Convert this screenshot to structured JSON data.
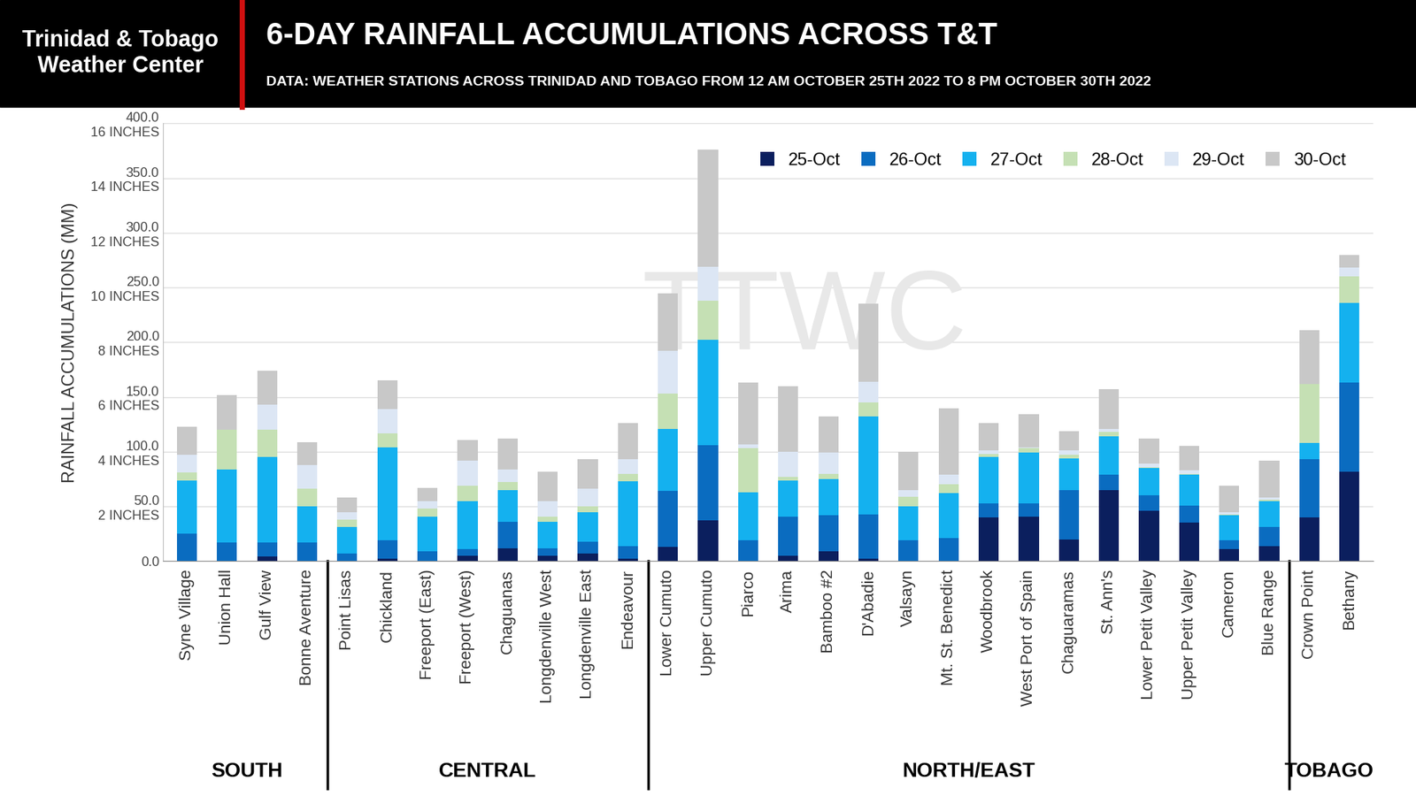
{
  "chart_data": {
    "type": "bar",
    "stacked": true,
    "grid": true,
    "legend": "upper right",
    "header": "Trinidad & Tobago\nWeather Center",
    "title": "6-DAY RAINFALL ACCUMULATIONS ACROSS T&T",
    "subtitle": "DATA: WEATHER STATIONS ACROSS TRINIDAD AND TOBAGO FROM 12 AM OCTOBER 25TH 2022 TO 8 PM OCTOBER 30TH 2022",
    "watermark": "TTWC",
    "y_label": "RAINFALL ACCUMULATIONS (MM)",
    "categories": [
      "Syne Village",
      "Union Hall",
      "Gulf View",
      "Bonne Aventure",
      "Point Lisas",
      "Chickland",
      "Freeport (East)",
      "Freeport (West)",
      "Chaguanas",
      "Longdenville West",
      "Longdenville East",
      "Endeavour",
      "Lower Cumuto",
      "Upper Cumuto",
      "Piarco",
      "Arima",
      "Bamboo #2",
      "D'Abadie",
      "Valsayn",
      "Mt. St. Benedict",
      "Woodbrook",
      "West Port of Spain",
      "Chaguaramas",
      "St. Ann's",
      "Lower Petit Valley",
      "Upper Petit Valley",
      "Cameron",
      "Blue Range",
      "Crown Point",
      "Bethany"
    ],
    "groups": [
      "SOUTH",
      "SOUTH",
      "SOUTH",
      "SOUTH",
      "CENTRAL",
      "CENTRAL",
      "CENTRAL",
      "CENTRAL",
      "CENTRAL",
      "CENTRAL",
      "CENTRAL",
      "CENTRAL",
      "NORTH/EAST",
      "NORTH/EAST",
      "NORTH/EAST",
      "NORTH/EAST",
      "NORTH/EAST",
      "NORTH/EAST",
      "NORTH/EAST",
      "NORTH/EAST",
      "NORTH/EAST",
      "NORTH/EAST",
      "NORTH/EAST",
      "NORTH/EAST",
      "NORTH/EAST",
      "NORTH/EAST",
      "NORTH/EAST",
      "NORTH/EAST",
      "TOBAGO",
      "TOBAGO"
    ],
    "series": [
      {
        "name": "25-Oct",
        "color": "#0b1f5e",
        "values": [
          0,
          0,
          4,
          0,
          0,
          2,
          0,
          5,
          12,
          5,
          7,
          2,
          13,
          37,
          0,
          5,
          9,
          2,
          0,
          0,
          40,
          41,
          20,
          65,
          46,
          35,
          11,
          14,
          40,
          82
        ]
      },
      {
        "name": "26-Oct",
        "color": "#0a6cc0",
        "values": [
          25,
          17,
          13,
          17,
          7,
          17,
          9,
          6,
          24,
          7,
          11,
          12,
          51,
          69,
          19,
          36,
          33,
          41,
          19,
          21,
          13,
          12,
          45,
          14,
          14,
          16,
          8,
          17,
          53,
          81
        ]
      },
      {
        "name": "27-Oct",
        "color": "#14b1ef",
        "values": [
          49,
          67,
          78,
          33,
          24,
          85,
          32,
          44,
          29,
          24,
          27,
          59,
          57,
          96,
          44,
          33,
          33,
          89,
          31,
          41,
          42,
          46,
          29,
          35,
          25,
          28,
          23,
          24,
          15,
          73
        ]
      },
      {
        "name": "28-Oct",
        "color": "#c5e0b4",
        "values": [
          7,
          36,
          25,
          16,
          7,
          13,
          7,
          14,
          7,
          5,
          5,
          7,
          32,
          36,
          40,
          3,
          5,
          13,
          9,
          8,
          3,
          4,
          3,
          4,
          1,
          1,
          1,
          1,
          54,
          24
        ]
      },
      {
        "name": "29-Oct",
        "color": "#dce6f4",
        "values": [
          16,
          0,
          23,
          22,
          7,
          22,
          7,
          23,
          12,
          14,
          16,
          13,
          39,
          31,
          4,
          23,
          19,
          19,
          6,
          9,
          3,
          1,
          4,
          3,
          3,
          3,
          2,
          2,
          0,
          8
        ]
      },
      {
        "name": "30-Oct",
        "color": "#c8c8c8",
        "values": [
          26,
          32,
          31,
          21,
          13,
          26,
          12,
          19,
          28,
          27,
          27,
          33,
          53,
          107,
          56,
          60,
          33,
          71,
          35,
          61,
          25,
          30,
          18,
          36,
          23,
          22,
          24,
          34,
          49,
          12
        ]
      }
    ],
    "ylim": [
      0,
      400
    ],
    "yticks": [
      {
        "value": 0,
        "label": "0.0"
      },
      {
        "value": 50,
        "label": "50.0\n2 INCHES"
      },
      {
        "value": 100,
        "label": "100.0\n4 INCHES"
      },
      {
        "value": 150,
        "label": "150.0\n6 INCHES"
      },
      {
        "value": 200,
        "label": "200.0\n8 INCHES"
      },
      {
        "value": 250,
        "label": "250.0\n10 INCHES"
      },
      {
        "value": 300,
        "label": "300.0\n12 INCHES"
      },
      {
        "value": 350,
        "label": "350.0\n14 INCHES"
      },
      {
        "value": 400,
        "label": "400.0\n16 INCHES"
      }
    ]
  }
}
